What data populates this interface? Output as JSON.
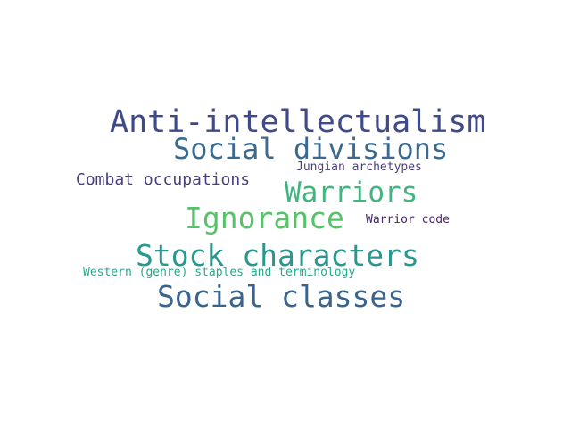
{
  "word_cloud": {
    "words": [
      {
        "key": "anti",
        "text": "Anti-intellectualism",
        "color": "#3f4a88"
      },
      {
        "key": "divisions",
        "text": "Social divisions",
        "color": "#3b6a8f"
      },
      {
        "key": "jungian",
        "text": "Jungian archetypes",
        "color": "#4a3f7d"
      },
      {
        "key": "combat",
        "text": "Combat occupations",
        "color": "#46407f"
      },
      {
        "key": "warriors",
        "text": "Warriors",
        "color": "#3fb57f"
      },
      {
        "key": "ignorance",
        "text": "Ignorance",
        "color": "#58c26a"
      },
      {
        "key": "code",
        "text": "Warrior code",
        "color": "#47236a"
      },
      {
        "key": "stock",
        "text": "Stock characters",
        "color": "#2a978f"
      },
      {
        "key": "western",
        "text": "Western (genre) staples and terminology",
        "color": "#27a88d"
      },
      {
        "key": "classes",
        "text": "Social classes",
        "color": "#3a648c"
      }
    ]
  }
}
